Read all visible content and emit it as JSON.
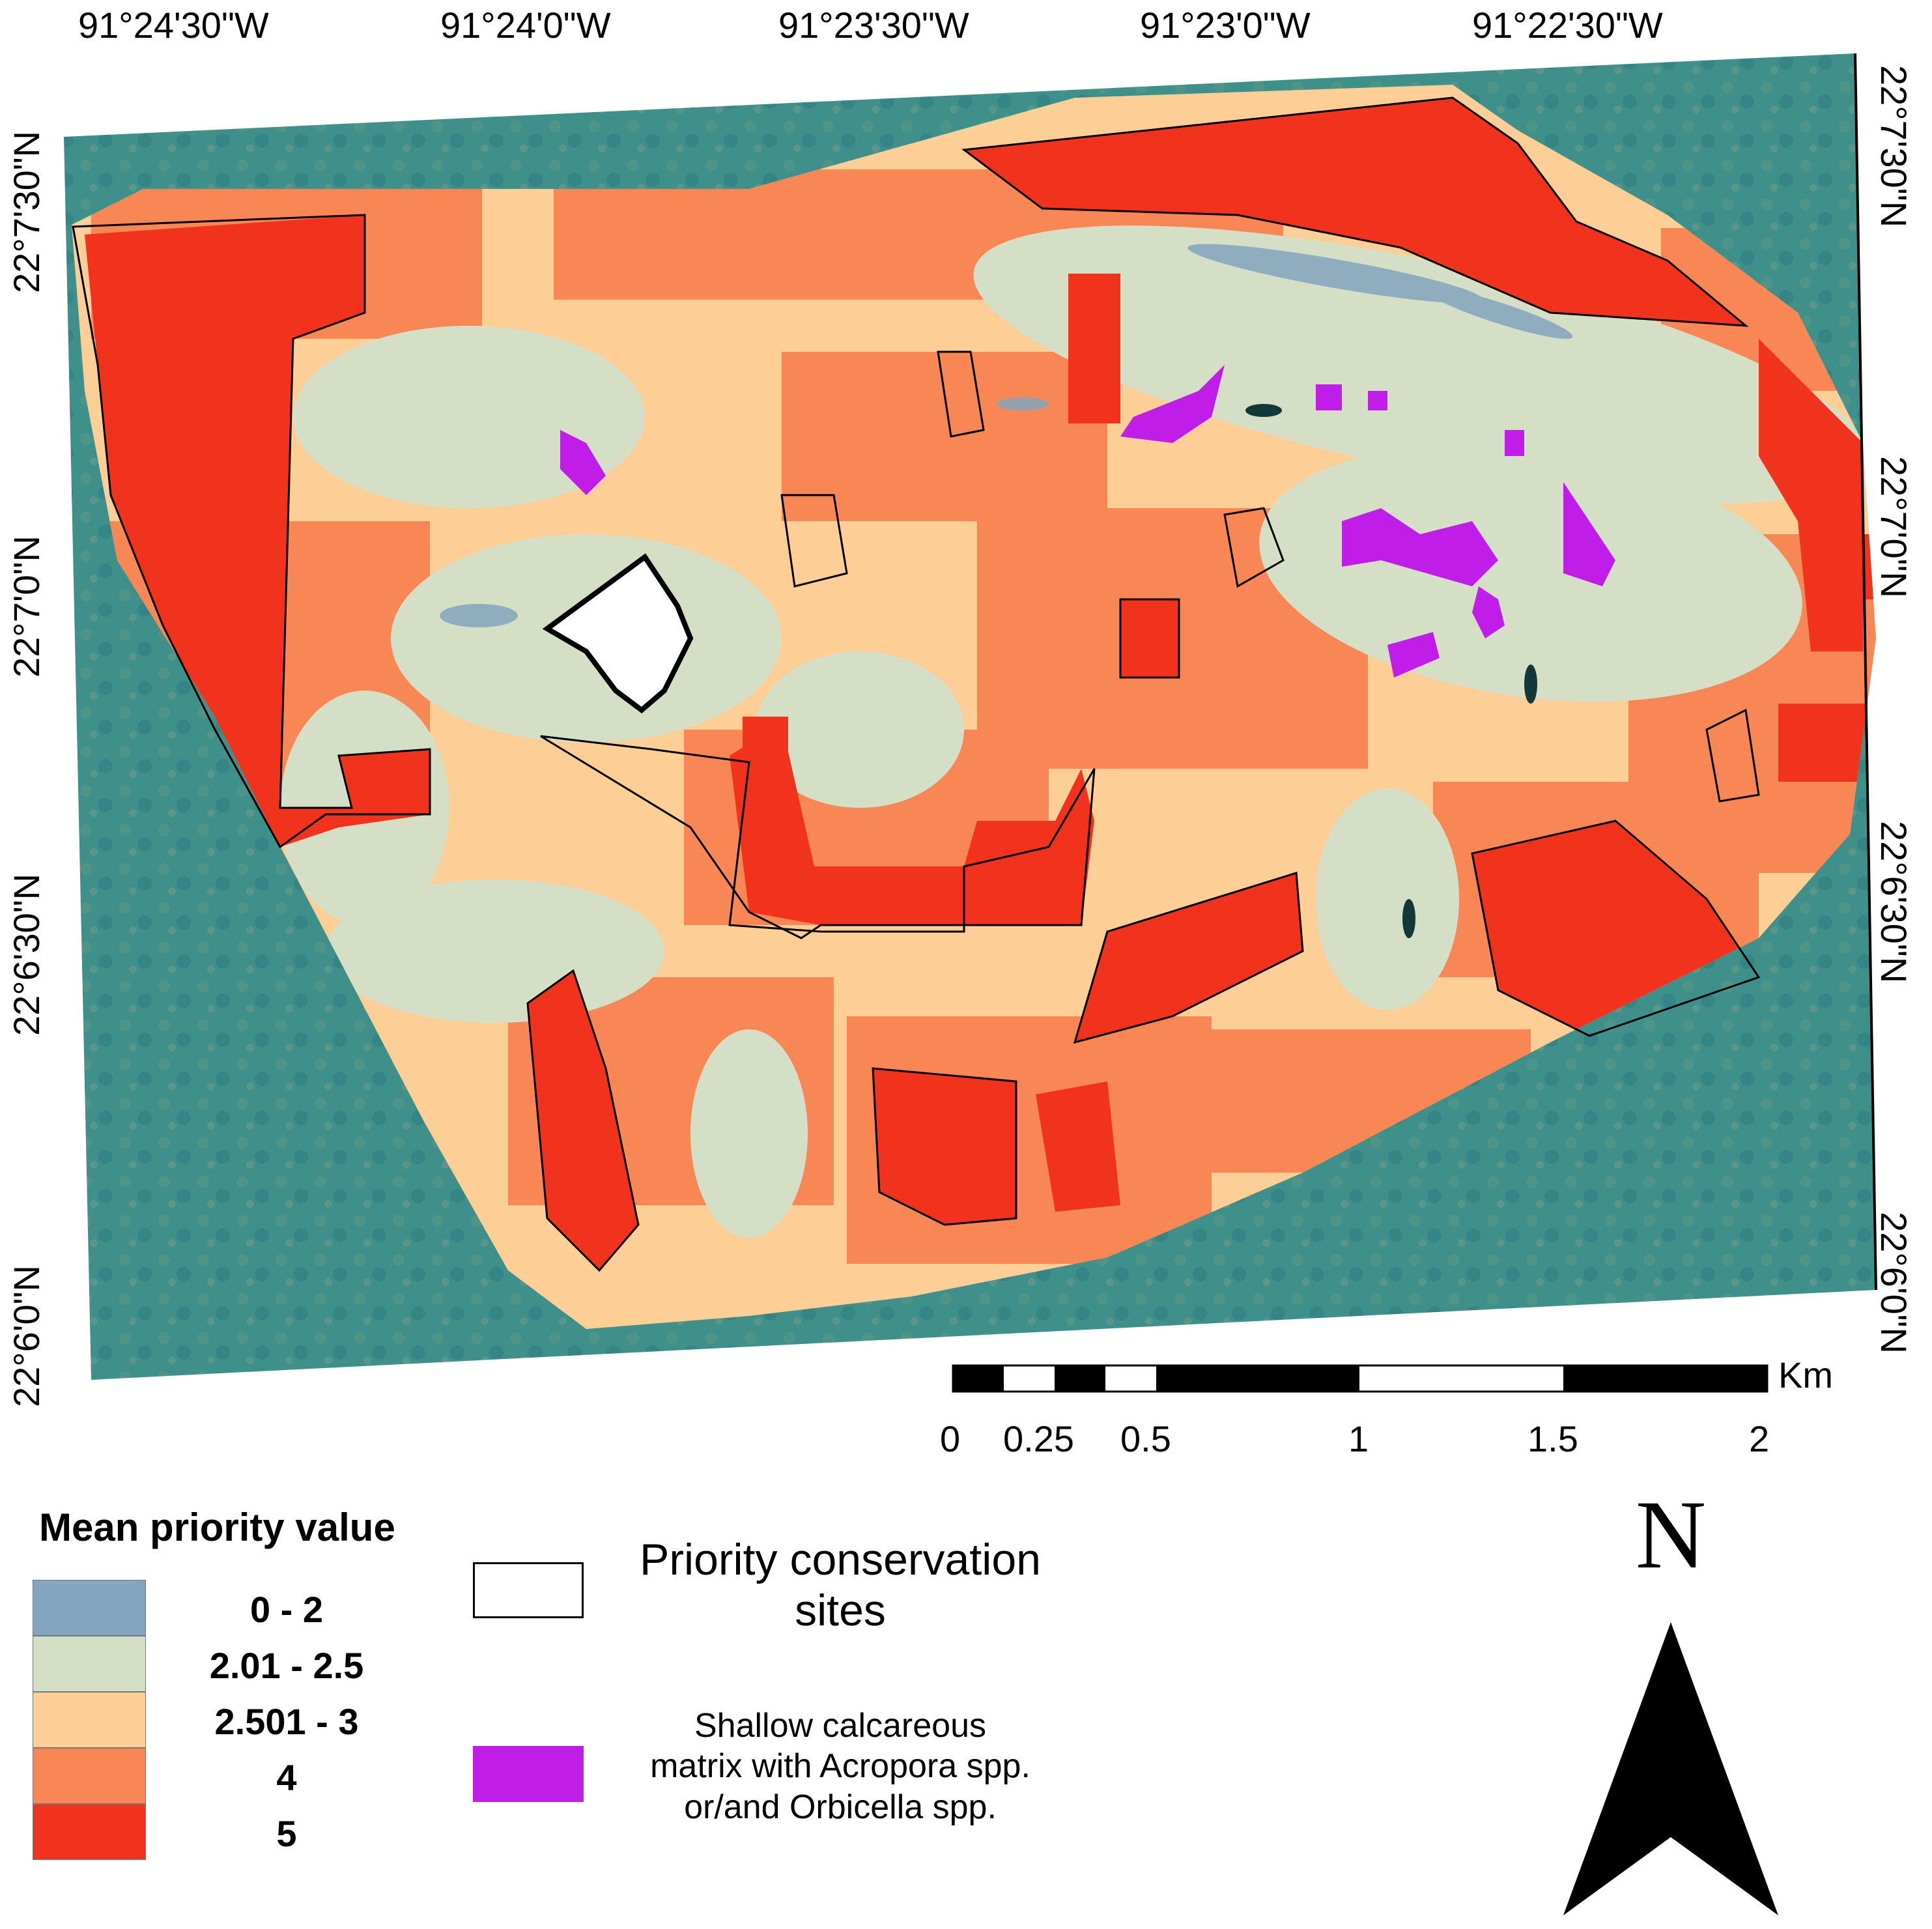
{
  "map": {
    "lon_labels": [
      "91°24'30\"W",
      "91°24'0\"W",
      "91°23'30\"W",
      "91°23'0\"W",
      "91°22'30\"W"
    ],
    "lat_labels": [
      "22°7'30\"N",
      "22°7'0\"N",
      "22°6'30\"N",
      "22°6'0\"N"
    ],
    "colors": {
      "sea": "#3f8f8a",
      "class_0_2": "#84a5bf",
      "class_2_2_5": "#d5dfc6",
      "class_2_5_3": "#fdcf96",
      "class_4": "#f98755",
      "class_5": "#f1331e",
      "acropora": "#c01ee8"
    }
  },
  "scalebar": {
    "unit": "Km",
    "labels": [
      "0",
      "0.25",
      "0.5",
      "1",
      "1.5",
      "2"
    ]
  },
  "legend": {
    "title": "Mean priority value",
    "classes": [
      {
        "label": "0 - 2",
        "color": "#84a5bf"
      },
      {
        "label": "2.01  - 2.5",
        "color": "#d5dfc6"
      },
      {
        "label": "2.501  - 3",
        "color": "#fdcf96"
      },
      {
        "label": "4",
        "color": "#f98755"
      },
      {
        "label": "5",
        "color": "#f1331e"
      }
    ],
    "sites_line1": "Priority conservation",
    "sites_line2": "sites",
    "acropora_line1": "Shallow calcareous",
    "acropora_line2": "matrix with Acropora spp.",
    "acropora_line3": "or/and Orbicella spp."
  },
  "north": {
    "letter": "N"
  }
}
